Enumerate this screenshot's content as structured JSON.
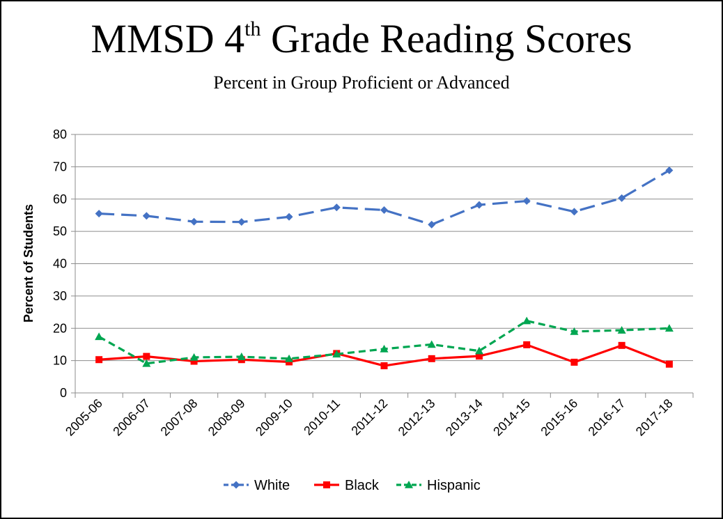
{
  "chart_data": {
    "type": "line",
    "title_main": "MMSD 4",
    "title_sup": "th",
    "title_rest": " Grade Reading Scores",
    "subtitle": "Percent in Group Proficient or Advanced",
    "ylabel": "Percent of Students",
    "xlabel": "",
    "ylim": [
      0,
      80
    ],
    "yticks": [
      0,
      10,
      20,
      30,
      40,
      50,
      60,
      70,
      80
    ],
    "grid": true,
    "legend_position": "bottom",
    "categories": [
      "2005-06",
      "2006-07",
      "2007-08",
      "2008-09",
      "2009-10",
      "2010-11",
      "2011-12",
      "2012-13",
      "2013-14",
      "2014-15",
      "2015-16",
      "2016-17",
      "2017-18"
    ],
    "series": [
      {
        "name": "White",
        "color": "#4472C4",
        "marker": "diamond",
        "dash": "long-dash",
        "values": [
          55.5,
          54.8,
          53.0,
          52.9,
          54.5,
          57.4,
          56.6,
          52.1,
          58.2,
          59.4,
          56.1,
          60.3,
          68.9
        ]
      },
      {
        "name": "Black",
        "color": "#FF0000",
        "marker": "square",
        "dash": "solid",
        "values": [
          10.3,
          11.3,
          9.8,
          10.3,
          9.6,
          12.2,
          8.4,
          10.6,
          11.4,
          14.9,
          9.5,
          14.7,
          8.9
        ]
      },
      {
        "name": "Hispanic",
        "color": "#00A651",
        "marker": "triangle",
        "dash": "dash",
        "values": [
          17.4,
          9.1,
          11.0,
          11.2,
          10.6,
          12.0,
          13.6,
          15.0,
          13.0,
          22.3,
          19.0,
          19.4,
          20.0
        ]
      }
    ]
  }
}
